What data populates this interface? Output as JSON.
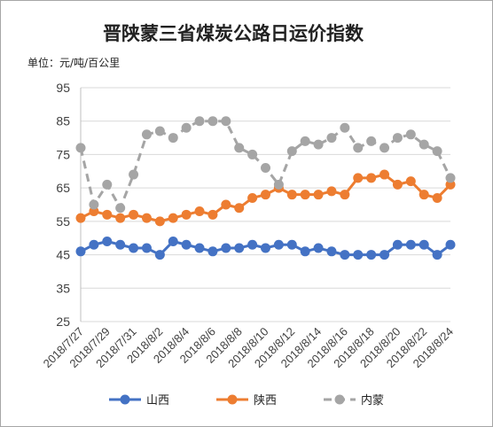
{
  "title": "晋陕蒙三省煤炭公路日运价指数",
  "unit_label": "单位：元/吨/百公里",
  "chart_data": {
    "type": "line",
    "title": "晋陕蒙三省煤炭公路日运价指数",
    "ylabel": "单位：元/吨/百公里",
    "ylim": [
      25,
      95
    ],
    "yticks": [
      25,
      35,
      45,
      55,
      65,
      75,
      85,
      95
    ],
    "x": [
      "2018/7/27",
      "2018/7/28",
      "2018/7/29",
      "2018/7/30",
      "2018/7/31",
      "2018/8/1",
      "2018/8/2",
      "2018/8/3",
      "2018/8/4",
      "2018/8/5",
      "2018/8/6",
      "2018/8/7",
      "2018/8/8",
      "2018/8/9",
      "2018/8/10",
      "2018/8/11",
      "2018/8/12",
      "2018/8/13",
      "2018/8/14",
      "2018/8/15",
      "2018/8/16",
      "2018/8/17",
      "2018/8/18",
      "2018/8/19",
      "2018/8/20",
      "2018/8/21",
      "2018/8/22",
      "2018/8/23",
      "2018/8/24"
    ],
    "xtick_labels": [
      "2018/7/27",
      "2018/7/29",
      "2018/7/31",
      "2018/8/2",
      "2018/8/4",
      "2018/8/6",
      "2018/8/8",
      "2018/8/10",
      "2018/8/12",
      "2018/8/14",
      "2018/8/16",
      "2018/8/18",
      "2018/8/20",
      "2018/8/22",
      "2018/8/24"
    ],
    "grid": true,
    "legend_position": "bottom",
    "series": [
      {
        "name": "山西",
        "color": "#4472c4",
        "dash": "solid",
        "values": [
          46,
          48,
          49,
          48,
          47,
          47,
          45,
          49,
          48,
          47,
          46,
          47,
          47,
          48,
          47,
          48,
          48,
          46,
          47,
          46,
          45,
          45,
          45,
          45,
          48,
          48,
          48,
          45,
          48
        ]
      },
      {
        "name": "陕西",
        "color": "#ed7d31",
        "dash": "solid",
        "values": [
          56,
          58,
          57,
          56,
          57,
          56,
          55,
          56,
          57,
          58,
          57,
          60,
          59,
          62,
          63,
          65,
          63,
          63,
          63,
          64,
          63,
          68,
          68,
          69,
          66,
          67,
          63,
          62,
          66
        ]
      },
      {
        "name": "内蒙",
        "color": "#a5a5a5",
        "dash": "dashed",
        "values": [
          77,
          60,
          66,
          59,
          69,
          81,
          82,
          80,
          83,
          85,
          85,
          85,
          77,
          75,
          71,
          66,
          76,
          79,
          78,
          80,
          83,
          77,
          79,
          77,
          80,
          81,
          78,
          76,
          68
        ]
      }
    ]
  }
}
